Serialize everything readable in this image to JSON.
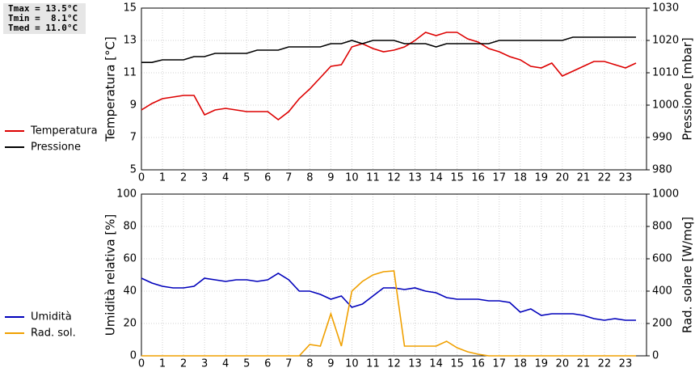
{
  "chart_data": [
    {
      "type": "line",
      "stats": [
        "Tmax = 13.5°C",
        "Tmin =  8.1°C",
        "Tmed = 11.0°C"
      ],
      "ylabel": "Temperatura [°C]",
      "y2label": "Pressione [mbar]",
      "x": [
        0,
        0.5,
        1,
        1.5,
        2,
        2.5,
        3,
        3.5,
        4,
        4.5,
        5,
        5.5,
        6,
        6.5,
        7,
        7.5,
        8,
        8.5,
        9,
        9.5,
        10,
        10.5,
        11,
        11.5,
        12,
        12.5,
        13,
        13.5,
        14,
        14.5,
        15,
        15.5,
        16,
        16.5,
        17,
        17.5,
        18,
        18.5,
        19,
        19.5,
        20,
        20.5,
        21,
        21.5,
        22,
        22.5,
        23,
        23.5
      ],
      "xlim": [
        0,
        24
      ],
      "xticks": [
        0,
        1,
        2,
        3,
        4,
        5,
        6,
        7,
        8,
        9,
        10,
        11,
        12,
        13,
        14,
        15,
        16,
        17,
        18,
        19,
        20,
        21,
        22,
        23
      ],
      "ylim": [
        5,
        15
      ],
      "yticks": [
        5,
        7,
        9,
        11,
        13,
        15
      ],
      "y2lim": [
        980,
        1030
      ],
      "y2ticks": [
        980,
        990,
        1000,
        1010,
        1020,
        1030
      ],
      "grid": true,
      "series": [
        {
          "name": "Temperatura",
          "color": "#dd0000",
          "values": [
            8.7,
            9.1,
            9.4,
            9.5,
            9.6,
            9.6,
            8.4,
            8.7,
            8.8,
            8.7,
            8.6,
            8.6,
            8.6,
            8.1,
            8.6,
            9.4,
            10.0,
            10.7,
            11.4,
            11.5,
            12.6,
            12.8,
            12.5,
            12.3,
            12.4,
            12.6,
            13.0,
            13.5,
            13.3,
            13.5,
            13.5,
            13.1,
            12.9,
            12.5,
            12.3,
            12.0,
            11.8,
            11.4,
            11.3,
            11.6,
            10.8,
            11.1,
            11.4,
            11.7,
            11.7,
            11.5,
            11.3,
            11.6
          ]
        },
        {
          "name": "Pressione",
          "color": "#000000",
          "axis": "y2",
          "values": [
            1013.2,
            1013.2,
            1014,
            1014,
            1014,
            1015,
            1015,
            1016,
            1016,
            1016,
            1016,
            1017,
            1017,
            1017,
            1018,
            1018,
            1018,
            1018,
            1019,
            1019,
            1020,
            1019,
            1020,
            1020,
            1020,
            1019,
            1019,
            1019,
            1018,
            1019,
            1019,
            1019,
            1019,
            1019,
            1020,
            1020,
            1020,
            1020,
            1020,
            1020,
            1020,
            1021,
            1021,
            1021,
            1021,
            1021,
            1021,
            1021
          ]
        }
      ]
    },
    {
      "type": "line",
      "ylabel": "Umidità relativa [%]",
      "y2label": "Rad. solare [W/mq]",
      "x": [
        0,
        0.5,
        1,
        1.5,
        2,
        2.5,
        3,
        3.5,
        4,
        4.5,
        5,
        5.5,
        6,
        6.5,
        7,
        7.5,
        8,
        8.5,
        9,
        9.5,
        10,
        10.5,
        11,
        11.5,
        12,
        12.5,
        13,
        13.5,
        14,
        14.5,
        15,
        15.5,
        16,
        16.5,
        17,
        17.5,
        18,
        18.5,
        19,
        19.5,
        20,
        20.5,
        21,
        21.5,
        22,
        22.5,
        23,
        23.5
      ],
      "xlim": [
        0,
        24
      ],
      "xticks": [
        0,
        1,
        2,
        3,
        4,
        5,
        6,
        7,
        8,
        9,
        10,
        11,
        12,
        13,
        14,
        15,
        16,
        17,
        18,
        19,
        20,
        21,
        22,
        23
      ],
      "ylim": [
        0,
        100
      ],
      "yticks": [
        0,
        20,
        40,
        60,
        80,
        100
      ],
      "y2lim": [
        0,
        1000
      ],
      "y2ticks": [
        0,
        200,
        400,
        600,
        800,
        1000
      ],
      "grid": true,
      "series": [
        {
          "name": "Umidità",
          "color": "#0000bb",
          "values": [
            48,
            45,
            43,
            42,
            42,
            43,
            48,
            47,
            46,
            47,
            47,
            46,
            47,
            51,
            47,
            40,
            40,
            38,
            35,
            37,
            30,
            32,
            37,
            42,
            42,
            41,
            42,
            40,
            39,
            36,
            35,
            35,
            35,
            34,
            34,
            33,
            27,
            29,
            25,
            26,
            26,
            26,
            25,
            23,
            22,
            23,
            22,
            22
          ]
        },
        {
          "name": "Rad. sol.",
          "color": "#f0a000",
          "axis": "y2",
          "values": [
            0,
            0,
            0,
            0,
            0,
            0,
            0,
            0,
            0,
            0,
            0,
            0,
            0,
            0,
            0,
            0,
            70,
            60,
            260,
            60,
            400,
            460,
            500,
            520,
            525,
            60,
            60,
            60,
            60,
            90,
            50,
            25,
            10,
            0,
            0,
            0,
            0,
            0,
            0,
            0,
            0,
            0,
            0,
            0,
            0,
            0,
            0,
            0
          ]
        }
      ]
    }
  ]
}
